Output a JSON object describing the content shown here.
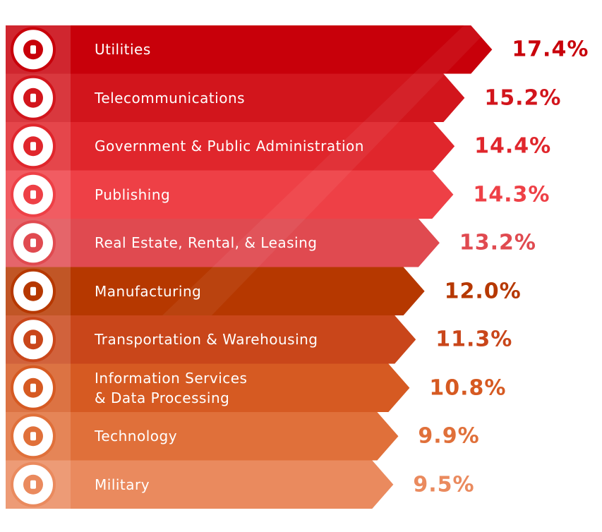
{
  "chart_data": {
    "type": "bar",
    "categories": [
      "Utilities",
      "Telecommunications",
      "Government & Public Administration",
      "Publishing",
      "Real Estate, Rental, & Leasing",
      "Manufacturing",
      "Transportation & Warehousing",
      "Information Services\n& Data Processing",
      "Technology",
      "Military"
    ],
    "values": [
      17.4,
      15.2,
      14.4,
      14.3,
      13.2,
      12.0,
      11.3,
      10.8,
      9.9,
      9.5
    ],
    "value_labels": [
      "17.4%",
      "15.2%",
      "14.4%",
      "14.3%",
      "13.2%",
      "12.0%",
      "11.3%",
      "10.8%",
      "9.9%",
      "9.5%"
    ],
    "colors": [
      "#c8000a",
      "#d2151c",
      "#e0262c",
      "#ee4046",
      "#e04a50",
      "#b63800",
      "#c9461a",
      "#d65a22",
      "#e0703a",
      "#ea8a5e"
    ]
  }
}
